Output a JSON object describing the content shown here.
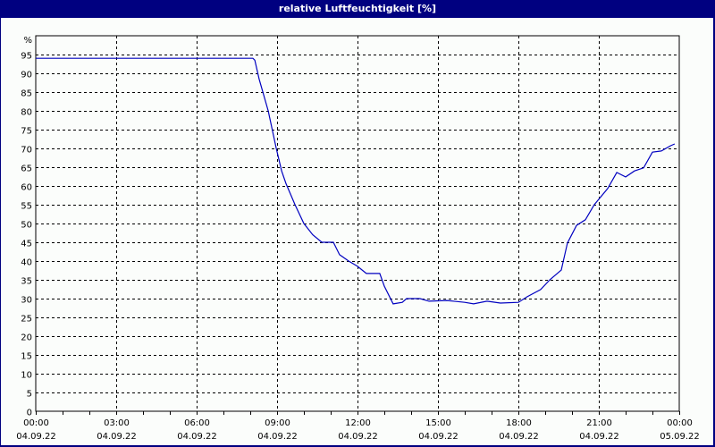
{
  "header": {
    "title": "relative Luftfeuchtigkeit [%]"
  },
  "colors": {
    "titlebar": "#000080",
    "line": "#0000c0",
    "grid": "#000000",
    "background": "#fbfdfb"
  },
  "chart_data": {
    "type": "line",
    "title": "relative Luftfeuchtigkeit [%]",
    "xlabel": "",
    "ylabel": "%",
    "ylim": [
      0,
      95
    ],
    "yticks": [
      0,
      5,
      10,
      15,
      20,
      25,
      30,
      35,
      40,
      45,
      50,
      55,
      60,
      65,
      70,
      75,
      80,
      85,
      90,
      95
    ],
    "xlim_hours": [
      0,
      24
    ],
    "xticks": [
      {
        "time": "00:00",
        "date": "04.09.22"
      },
      {
        "time": "03:00",
        "date": "04.09.22"
      },
      {
        "time": "06:00",
        "date": "04.09.22"
      },
      {
        "time": "09:00",
        "date": "04.09.22"
      },
      {
        "time": "12:00",
        "date": "04.09.22"
      },
      {
        "time": "15:00",
        "date": "04.09.22"
      },
      {
        "time": "18:00",
        "date": "04.09.22"
      },
      {
        "time": "21:00",
        "date": "04.09.22"
      },
      {
        "time": "00:00",
        "date": "05.09.22"
      }
    ],
    "grid": true,
    "legend": null,
    "series": [
      {
        "name": "relative Luftfeuchtigkeit",
        "x_hours": [
          0,
          8.1,
          8.17,
          8.33,
          8.67,
          8.97,
          9.17,
          9.33,
          9.67,
          10.0,
          10.33,
          10.67,
          11.1,
          11.33,
          11.67,
          12.0,
          12.33,
          12.83,
          13.0,
          13.33,
          13.67,
          13.83,
          14.33,
          14.67,
          15.33,
          16.0,
          16.33,
          16.83,
          17.33,
          18.0,
          18.33,
          18.83,
          19.17,
          19.6,
          19.83,
          20.17,
          20.5,
          20.83,
          21.33,
          21.67,
          22.0,
          22.33,
          22.67,
          23.0,
          23.33,
          23.67,
          23.83
        ],
        "values": [
          94.0,
          94.0,
          93.5,
          88.5,
          80.0,
          70.0,
          64.0,
          60.7,
          55.0,
          50.0,
          47.0,
          45.0,
          45.0,
          41.7,
          40.0,
          38.6,
          36.7,
          36.7,
          33.3,
          28.6,
          29.0,
          30.0,
          30.0,
          29.3,
          29.5,
          29.0,
          28.6,
          29.3,
          28.8,
          29.0,
          30.5,
          32.4,
          35.0,
          37.6,
          44.8,
          49.5,
          51.0,
          55.0,
          59.3,
          63.6,
          62.4,
          64.0,
          64.8,
          69.0,
          69.3,
          70.7,
          71.2
        ]
      }
    ]
  }
}
